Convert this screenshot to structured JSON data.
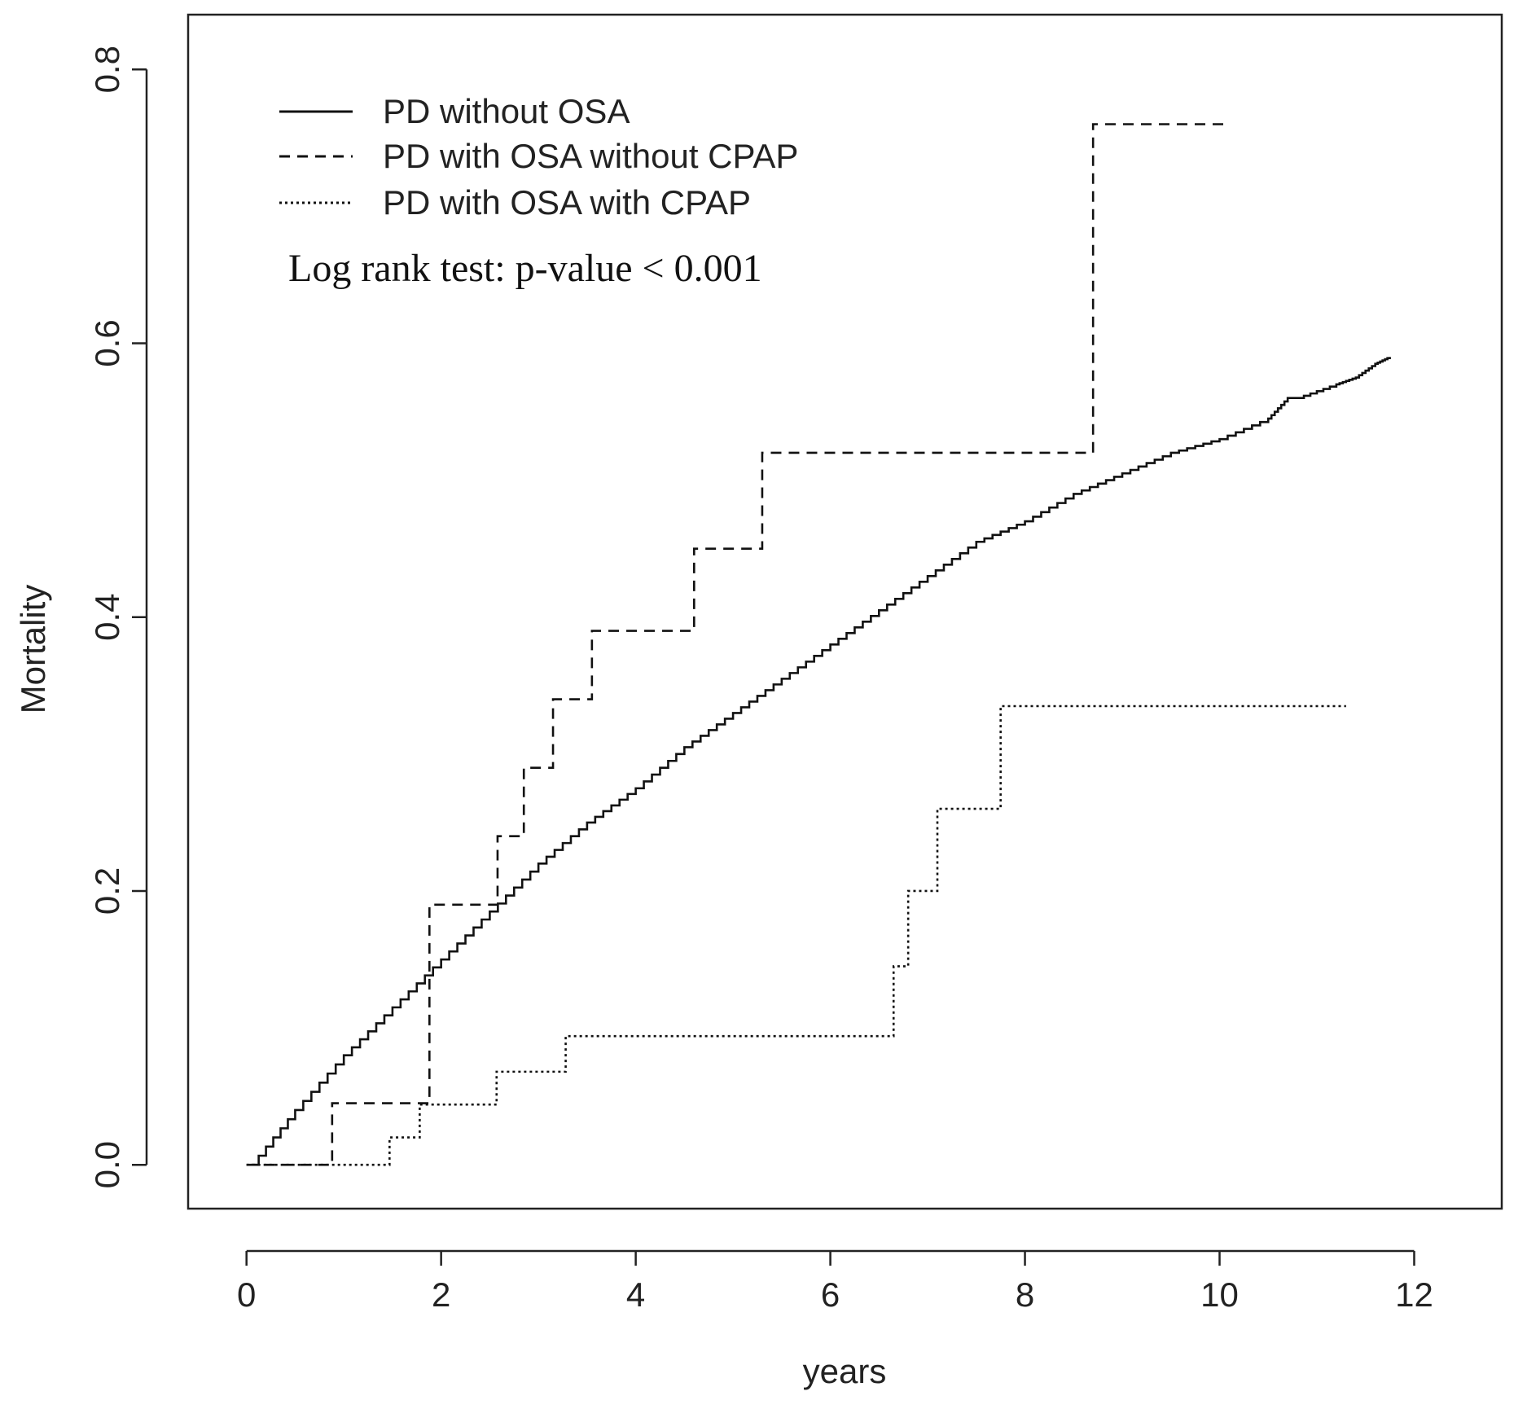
{
  "chart_data": {
    "type": "line",
    "subtype": "step",
    "title": "",
    "xlabel": "years",
    "ylabel": "Mortality",
    "xlim": [
      -0.6,
      12.9
    ],
    "ylim": [
      -0.032,
      0.84
    ],
    "x_ticks": [
      0,
      2,
      4,
      6,
      8,
      10,
      12
    ],
    "x_tick_labels": [
      "0",
      "2",
      "4",
      "6",
      "8",
      "10",
      "12"
    ],
    "y_ticks": [
      0.0,
      0.2,
      0.4,
      0.6,
      0.8
    ],
    "y_tick_labels": [
      "0.0",
      "0.2",
      "0.4",
      "0.6",
      "0.8"
    ],
    "grid": false,
    "legend_position": "top-left",
    "annotation": "Log rank test: p-value < 0.001",
    "series": [
      {
        "name": "PD without OSA",
        "style": "solid",
        "x": [
          0.05,
          0.5,
          1.0,
          1.5,
          2.0,
          2.5,
          3.0,
          3.5,
          4.0,
          4.5,
          5.0,
          5.5,
          6.0,
          6.5,
          7.0,
          7.5,
          8.0,
          8.5,
          9.0,
          9.5,
          10.0,
          10.5,
          10.7,
          10.8,
          11.2,
          11.4,
          11.6,
          11.75
        ],
        "values": [
          0.0,
          0.04,
          0.08,
          0.115,
          0.15,
          0.185,
          0.22,
          0.25,
          0.275,
          0.305,
          0.33,
          0.355,
          0.38,
          0.405,
          0.43,
          0.455,
          0.47,
          0.49,
          0.505,
          0.52,
          0.53,
          0.545,
          0.56,
          0.56,
          0.57,
          0.575,
          0.585,
          0.59
        ]
      },
      {
        "name": "PD with OSA without CPAP",
        "style": "dashed",
        "x": [
          0.0,
          0.88,
          1.88,
          2.58,
          2.85,
          3.15,
          3.55,
          4.6,
          5.3,
          8.7,
          10.05
        ],
        "values": [
          0.0,
          0.045,
          0.19,
          0.24,
          0.29,
          0.34,
          0.39,
          0.45,
          0.52,
          0.76,
          0.76
        ]
      },
      {
        "name": "PD with OSA with CPAP",
        "style": "dotted",
        "x": [
          0.0,
          1.47,
          1.78,
          2.57,
          3.28,
          6.65,
          6.8,
          7.1,
          7.75,
          11.3
        ],
        "values": [
          0.0,
          0.02,
          0.044,
          0.068,
          0.094,
          0.145,
          0.2,
          0.26,
          0.335,
          0.335
        ]
      }
    ]
  }
}
